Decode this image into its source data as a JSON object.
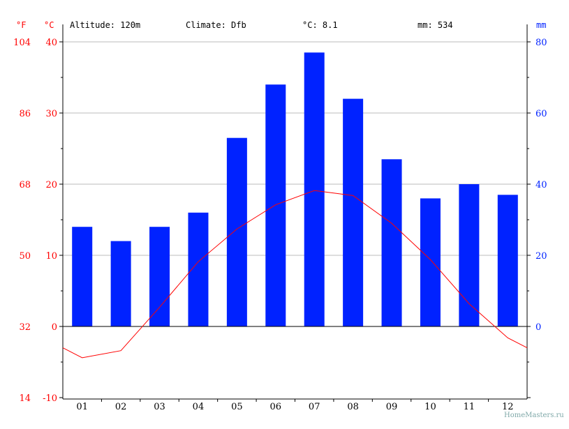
{
  "header": {
    "altitude": "Altitude: 120m",
    "climate": "Climate: Dfb",
    "mean_temp": "°C: 8.1",
    "precip_total": "mm: 534"
  },
  "watermark": "HomeMasters.ru",
  "colors": {
    "temperature": "#ff0000",
    "precipitation": "#0022ff",
    "grid": "#bbbbbb"
  },
  "chart_data": {
    "type": "bar+line",
    "categories": [
      "01",
      "02",
      "03",
      "04",
      "05",
      "06",
      "07",
      "08",
      "09",
      "10",
      "11",
      "12"
    ],
    "series": [
      {
        "type": "bar",
        "axis": "right",
        "unit": "mm",
        "values": [
          28,
          24,
          28,
          32,
          53,
          68,
          77,
          64,
          47,
          36,
          40,
          37
        ]
      },
      {
        "type": "line",
        "axis": "left",
        "unit": "°C",
        "values": [
          -4.4,
          -3.4,
          2.7,
          9.1,
          13.7,
          17.1,
          19.1,
          18.4,
          14.5,
          9.4,
          3.2,
          -1.6
        ]
      }
    ],
    "left_axis_c": {
      "label": "°C",
      "range": [
        -10,
        40
      ],
      "ticks": [
        "-10",
        "0",
        "10",
        "20",
        "30",
        "40"
      ]
    },
    "left_axis_f": {
      "label": "°F",
      "ticks": [
        "14",
        "32",
        "50",
        "68",
        "86",
        "104"
      ]
    },
    "right_axis": {
      "label": "mm",
      "range": [
        -20,
        80
      ],
      "ticks": [
        "0",
        "20",
        "40",
        "60",
        "80"
      ]
    },
    "grid": true
  }
}
